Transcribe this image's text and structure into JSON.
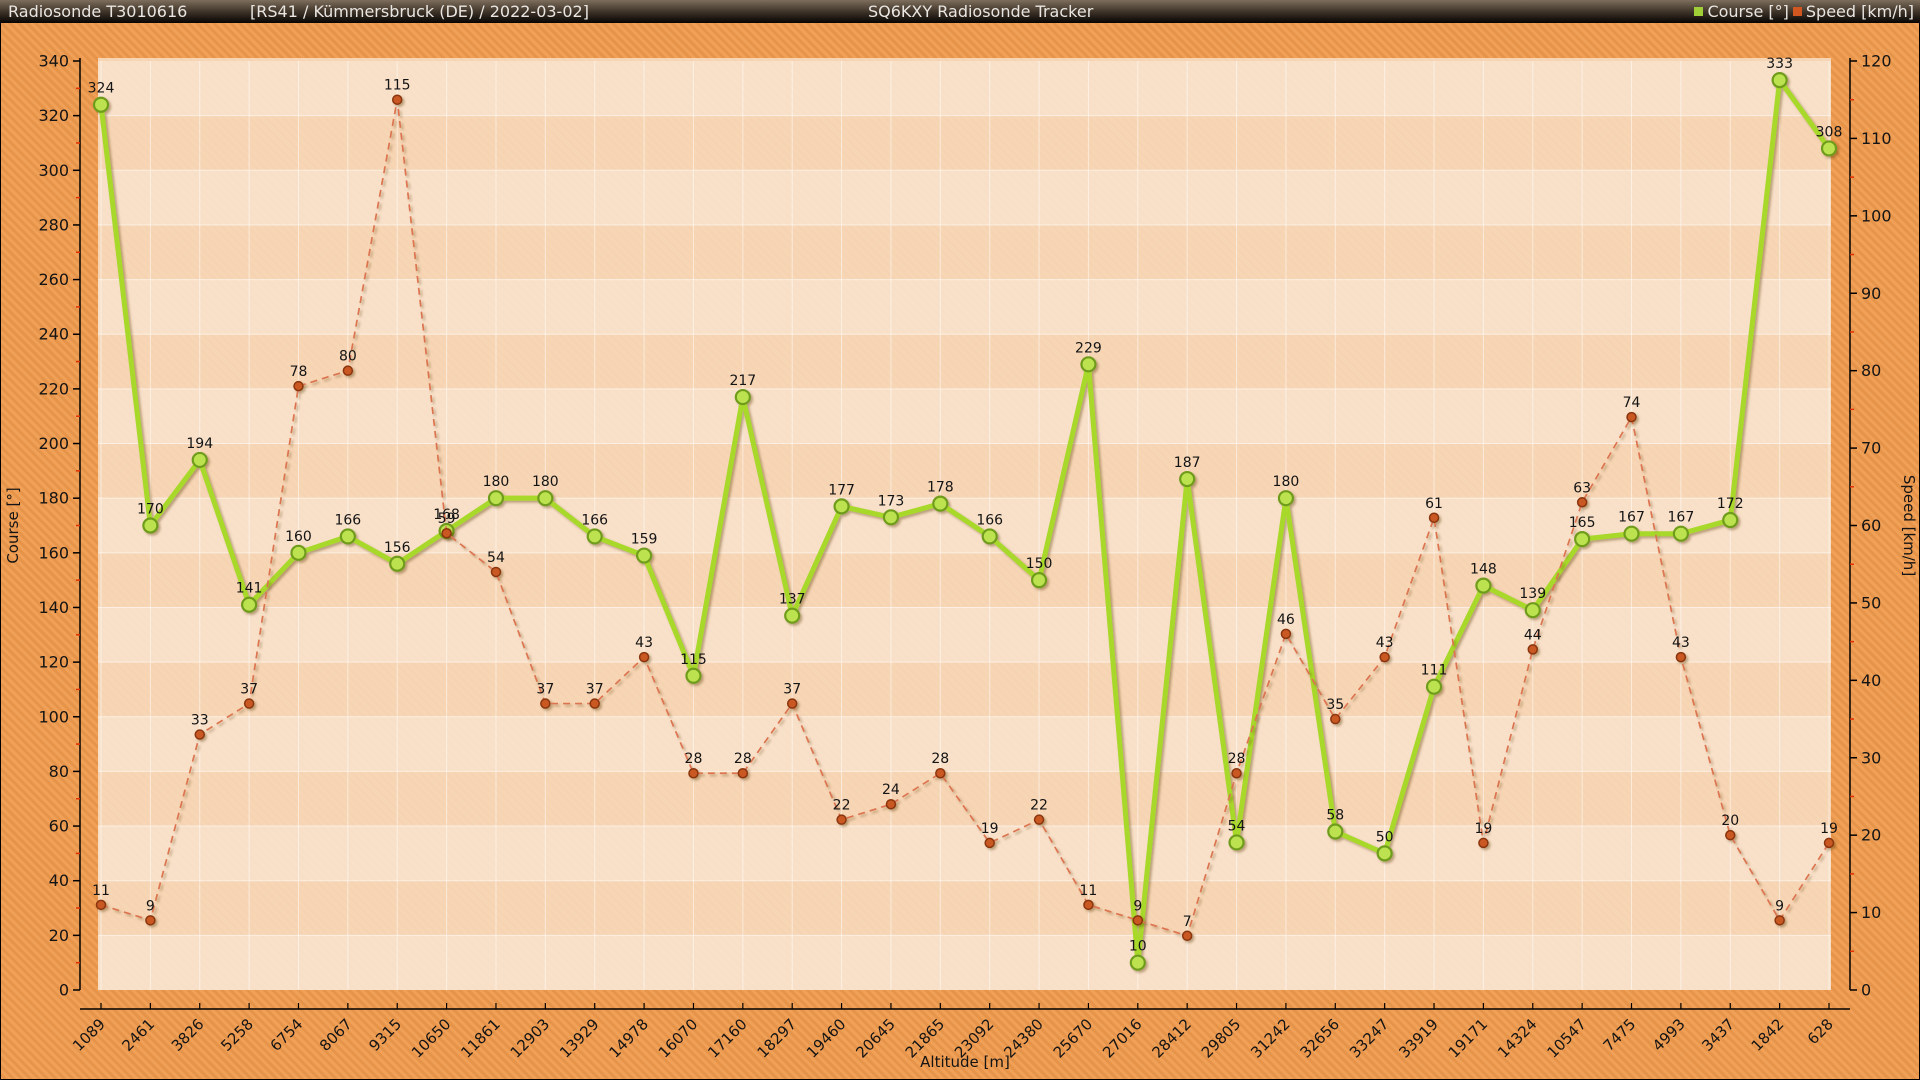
{
  "header": {
    "station": "Radiosonde T3010616",
    "details": "[RS41 / Kümmersbruck (DE) / 2022-03-02]",
    "app_title": "SQ6KXY Radiosonde Tracker",
    "legend_course": "Course [°]",
    "legend_speed": "Speed [km/h]"
  },
  "colors": {
    "course_line": "#a8d829",
    "course_marker_fill": "#bde24f",
    "course_marker_stroke": "#6f9c1c",
    "speed_line": "#dc7450",
    "speed_marker_fill": "#c95822",
    "speed_marker_stroke": "#8a3510",
    "legend_course_swatch": "#a0ce37",
    "legend_speed_swatch": "#d2561f",
    "minor_tick": "#e03000",
    "axis": "#000000"
  },
  "chart_data": {
    "type": "line",
    "title": "SQ6KXY Radiosonde Tracker",
    "xlabel": "Altitude [m]",
    "x": [
      1089,
      2461,
      3826,
      5258,
      6754,
      8067,
      9315,
      10650,
      11861,
      12903,
      13929,
      14978,
      16070,
      17160,
      18297,
      19460,
      20645,
      21865,
      23092,
      24380,
      25670,
      27016,
      28412,
      29805,
      31242,
      32656,
      33247,
      33919,
      19171,
      14324,
      10547,
      7475,
      4993,
      3437,
      1842,
      628
    ],
    "series": [
      {
        "name": "Course [°]",
        "axis": "left",
        "style": "solid",
        "values": [
          324,
          170,
          194,
          141,
          160,
          166,
          156,
          168,
          180,
          180,
          166,
          159,
          115,
          217,
          137,
          177,
          173,
          178,
          166,
          150,
          229,
          10,
          187,
          54,
          180,
          58,
          50,
          111,
          148,
          139,
          165,
          167,
          167,
          172,
          333,
          308
        ]
      },
      {
        "name": "Speed [km/h]",
        "axis": "right",
        "style": "dashed",
        "values": [
          11,
          9,
          33,
          37,
          78,
          80,
          115,
          59,
          54,
          37,
          37,
          43,
          28,
          28,
          37,
          22,
          24,
          28,
          19,
          22,
          11,
          9,
          7,
          28,
          46,
          35,
          43,
          61,
          19,
          44,
          63,
          74,
          43,
          20,
          9,
          19
        ]
      }
    ],
    "y_left": {
      "label": "Course [°]",
      "min": 0,
      "max": 340,
      "major": 20,
      "minor": 10
    },
    "y_right": {
      "label": "Speed [km/h]",
      "min": 0,
      "max": 120,
      "major": 10,
      "minor": 5
    },
    "grid": true,
    "legend_position": "top-right"
  }
}
